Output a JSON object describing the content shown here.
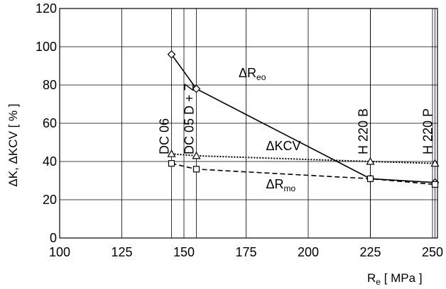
{
  "chart_data": {
    "type": "line",
    "xlabel_main": "R",
    "xlabel_sub": "e",
    "xlabel_unit": " [ MPa ]",
    "ylabel": "ΔK, ΔKCV [ % ]",
    "xlim": [
      100,
      252
    ],
    "ylim": [
      0,
      120
    ],
    "xticks": [
      100,
      125,
      150,
      175,
      200,
      225,
      250
    ],
    "yticks": [
      0,
      20,
      40,
      60,
      80,
      100,
      120
    ],
    "grid": true,
    "grades": [
      {
        "label": "DC 06",
        "x": 145
      },
      {
        "label": "DC 05 D + Z",
        "x": 155
      },
      {
        "label": "H 220 B",
        "x": 225
      },
      {
        "label": "H 220 P",
        "x": 251
      }
    ],
    "series": [
      {
        "main": "ΔR",
        "sub": "eo",
        "marker": "diamond",
        "line": "solid",
        "x": [
          145,
          155,
          225,
          251
        ],
        "y": [
          96,
          78,
          31,
          29
        ],
        "label_x": 172,
        "label_y": 84
      },
      {
        "main": "ΔKCV",
        "sub": "",
        "marker": "triangle",
        "line": "dotted",
        "x": [
          145,
          155,
          225,
          251
        ],
        "y": [
          44,
          43,
          40,
          39
        ],
        "label_x": 183,
        "label_y": 46
      },
      {
        "main": "ΔR",
        "sub": "mo",
        "marker": "square",
        "line": "dashed",
        "x": [
          145,
          155,
          225,
          251
        ],
        "y": [
          39,
          36,
          31,
          28
        ],
        "label_x": 183,
        "label_y": 26
      }
    ]
  }
}
